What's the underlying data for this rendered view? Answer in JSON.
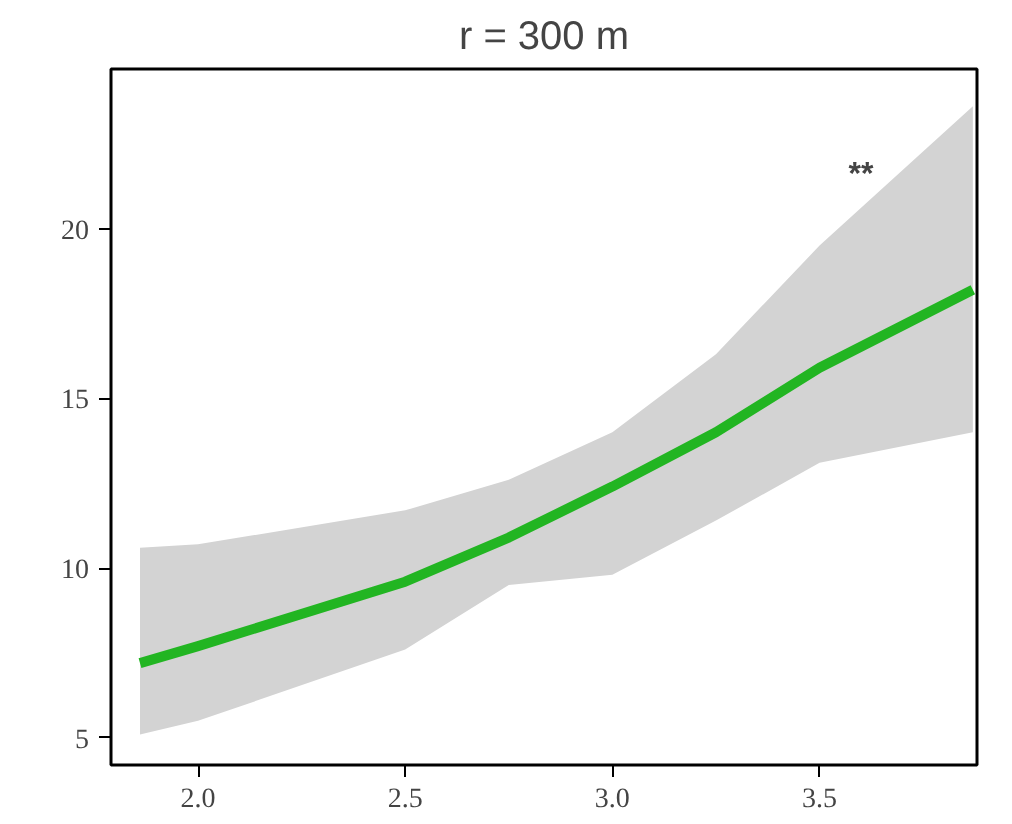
{
  "chart_data": {
    "type": "line",
    "title": "r = 300 m",
    "x": [
      1.86,
      2.0,
      2.5,
      2.75,
      3.0,
      3.25,
      3.5,
      3.87
    ],
    "series": [
      {
        "color": "#22b522",
        "values": [
          7.2,
          7.7,
          9.6,
          10.9,
          12.4,
          14.0,
          15.9,
          18.2
        ],
        "lower": [
          5.1,
          5.5,
          7.6,
          9.5,
          9.8,
          11.4,
          13.1,
          14.0
        ],
        "upper": [
          10.6,
          10.7,
          11.7,
          12.6,
          14.0,
          16.3,
          19.5,
          23.6
        ]
      }
    ],
    "annotations": [
      "**"
    ],
    "xlim": [
      1.79,
      3.88
    ],
    "ylim": [
      4.2,
      24.7
    ],
    "xticks": [
      {
        "value": 2,
        "label": "2.0"
      },
      {
        "value": 2.5,
        "label": "2.5"
      },
      {
        "value": 3,
        "label": "3.0"
      },
      {
        "value": 3.5,
        "label": "3.5"
      }
    ],
    "yticks": [
      5,
      10,
      15,
      20
    ],
    "grid": false,
    "marker": "none",
    "line_style": "solid"
  }
}
